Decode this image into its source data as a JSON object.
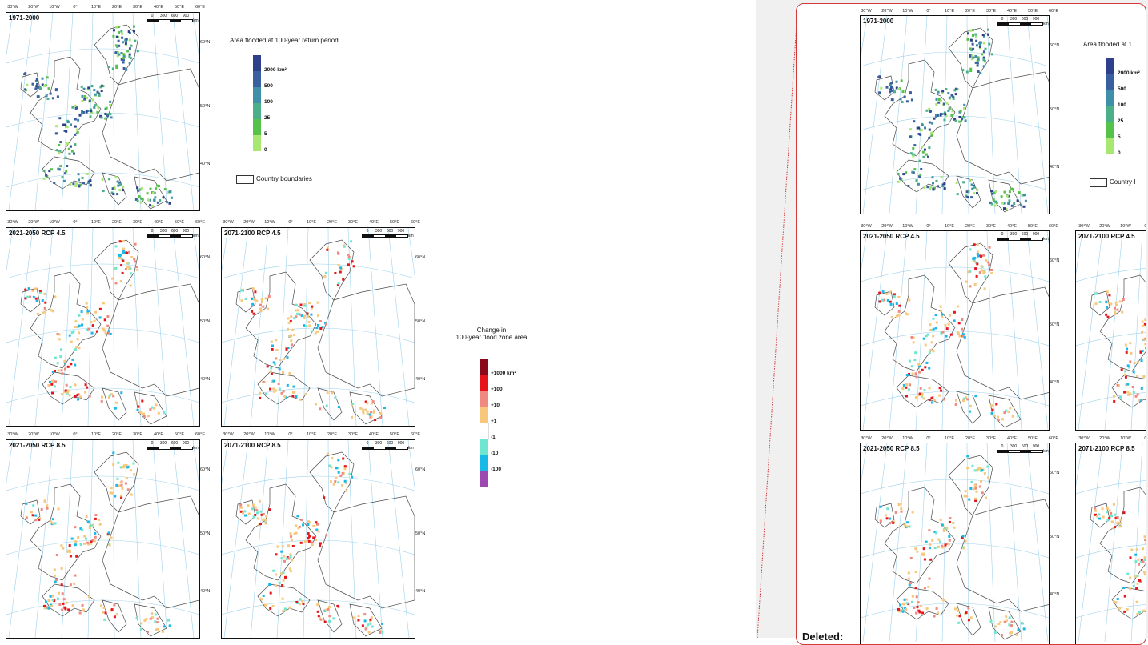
{
  "maps": [
    {
      "id": "baseline",
      "title": "1971-2000",
      "mode": "area"
    },
    {
      "id": "rcp45_2021",
      "title": "2021-2050 RCP 4.5",
      "mode": "change"
    },
    {
      "id": "rcp45_2071",
      "title": "2071-2100 RCP 4.5",
      "mode": "change"
    },
    {
      "id": "rcp85_2021",
      "title": "2021-2050 RCP 8.5",
      "mode": "change"
    },
    {
      "id": "rcp85_2071",
      "title": "2071-2100 RCP 8.5",
      "mode": "change"
    }
  ],
  "graticule": {
    "lon_labels": [
      "30°W",
      "20°W",
      "10°W",
      "0°",
      "10°E",
      "20°E",
      "30°E",
      "40°E",
      "50°E",
      "60°E"
    ],
    "lat_labels": [
      "60°N",
      "50°N",
      "40°N"
    ]
  },
  "scalebar": {
    "ticks": [
      "0",
      "300",
      "600",
      "900"
    ],
    "unit": "km"
  },
  "legend_area": {
    "title": "Area flooded at 100-year return period",
    "labels": [
      "2000 km²",
      "500",
      "100",
      "25",
      "5",
      "0"
    ],
    "colors": [
      "#2e3f8c",
      "#3a5fa0",
      "#3f8fa8",
      "#4bb08a",
      "#56c24a",
      "#a8e870"
    ]
  },
  "country_boundaries_label": "Country boundaries",
  "legend_change": {
    "title_line1": "Change in",
    "title_line2": "100-year flood zone area",
    "labels": [
      "+1000 km²",
      "+100",
      "+10",
      "+1",
      "-1",
      "-10",
      "-100"
    ],
    "colors": [
      "#8b0a1a",
      "#e8141c",
      "#f08a80",
      "#f7c87c",
      "#ffffff",
      "#6fe6d0",
      "#18b8e8",
      "#9c4ab0"
    ]
  },
  "comment_pane": {
    "truncated_legend_title": "Area flooded at 1",
    "truncated_boundary_label": "Country I",
    "truncated_title_45": "2071-2100 RCP 4.5",
    "truncated_title_85": "2071-2100 RCP 8.5",
    "deleted_label": "Deleted:"
  },
  "colors": {
    "graticule": "#9fd2ec",
    "border": "#d23a3a",
    "coast": "#4a4a4a"
  }
}
